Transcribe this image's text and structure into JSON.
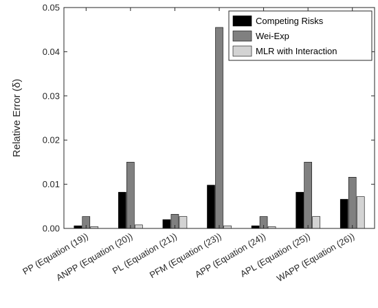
{
  "chart_data": {
    "type": "bar",
    "title": "",
    "xlabel": "",
    "ylabel": "Relative Error (δ)",
    "ylim": [
      0,
      0.05
    ],
    "yticks": [
      0,
      0.01,
      0.02,
      0.03,
      0.04,
      0.05
    ],
    "ytick_labels": [
      "0.00",
      "0.01",
      "0.02",
      "0.03",
      "0.04",
      "0.05"
    ],
    "grid": false,
    "legend_position": "top-right",
    "categories": [
      "PP (Equation (19))",
      "ANPP (Equation (20))",
      "PL (Equation (21))",
      "PFM (Equation (23))",
      "APP (Equation (24))",
      "APL (Equation (25))",
      "WAPP (Equation (26))"
    ],
    "series": [
      {
        "name": "Competing Risks",
        "color": "#000000",
        "values": [
          0.0006,
          0.0082,
          0.002,
          0.0098,
          0.0006,
          0.0082,
          0.0066
        ]
      },
      {
        "name": "Wei-Exp",
        "color": "#808080",
        "values": [
          0.0027,
          0.015,
          0.0032,
          0.0455,
          0.0027,
          0.015,
          0.0116
        ]
      },
      {
        "name": "MLR with Interaction",
        "color": "#d3d3d3",
        "values": [
          0.0004,
          0.0008,
          0.0027,
          0.0006,
          0.0004,
          0.0027,
          0.0072
        ]
      }
    ]
  }
}
